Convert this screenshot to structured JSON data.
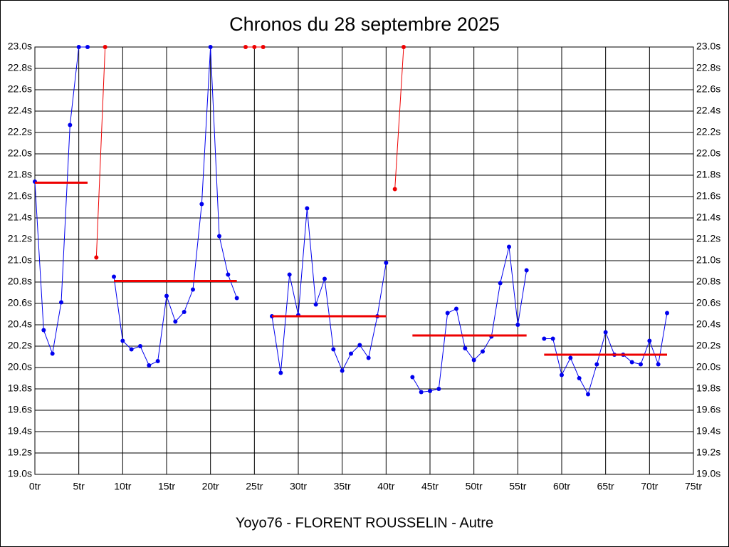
{
  "chart_data": {
    "type": "line",
    "title": "Chronos du 28 septembre 2025",
    "footer": "Yoyo76 - FLORENT ROUSSELIN - Autre",
    "x": [
      0,
      1,
      2,
      3,
      4,
      5,
      6,
      7,
      8,
      9,
      10,
      11,
      12,
      13,
      14,
      15,
      16,
      17,
      18,
      19,
      20,
      21,
      22,
      23,
      24,
      25,
      26,
      27,
      28,
      29,
      30,
      31,
      32,
      33,
      34,
      35,
      36,
      37,
      38,
      39,
      40,
      41,
      42,
      43,
      44,
      45,
      46,
      47,
      48,
      49,
      50,
      51,
      52,
      53,
      54,
      55,
      56,
      57,
      58,
      59,
      60,
      61,
      62,
      63,
      64,
      65,
      66,
      67,
      68,
      69,
      70,
      71,
      72
    ],
    "series": [
      {
        "color": "#0000ee",
        "values": [
          21.74,
          20.35,
          20.13,
          20.61,
          22.27,
          23.0,
          23.0,
          null,
          null,
          20.85,
          20.25,
          20.17,
          20.2,
          20.02,
          20.06,
          20.67,
          20.43,
          20.52,
          20.73,
          21.53,
          23.0,
          21.23,
          20.87,
          20.65,
          null,
          null,
          null,
          20.48,
          19.95,
          20.87,
          20.49,
          21.49,
          20.59,
          20.83,
          20.17,
          19.97,
          20.13,
          20.21,
          20.09,
          20.48,
          20.98,
          null,
          null,
          19.91,
          19.77,
          19.78,
          19.8,
          20.51,
          20.55,
          20.18,
          20.07,
          20.15,
          20.29,
          20.79,
          21.13,
          20.4,
          20.91,
          null,
          20.27,
          20.27,
          19.93,
          20.09,
          19.9,
          19.75,
          20.03,
          20.33,
          20.12,
          20.12,
          20.05,
          20.03,
          20.25,
          20.03,
          20.51
        ]
      },
      {
        "color": "#ee0000",
        "values": [
          null,
          null,
          null,
          null,
          null,
          null,
          null,
          21.03,
          23.0,
          null,
          null,
          null,
          null,
          null,
          null,
          null,
          null,
          null,
          null,
          null,
          null,
          null,
          null,
          null,
          23.0,
          23.0,
          23.0,
          null,
          null,
          null,
          null,
          null,
          null,
          null,
          null,
          null,
          null,
          null,
          null,
          null,
          null,
          21.67,
          23.0,
          null,
          null,
          null,
          null,
          null,
          null,
          null,
          null,
          null,
          null,
          null,
          null,
          null,
          null,
          null,
          null,
          null,
          null,
          null,
          null,
          null,
          null,
          null,
          null,
          null,
          null,
          null,
          null,
          null,
          null
        ]
      }
    ],
    "averages": {
      "color": "#ee0000",
      "segments": [
        {
          "start": 0,
          "end": 6,
          "value": 21.73
        },
        {
          "start": 9,
          "end": 23,
          "value": 20.81
        },
        {
          "start": 27,
          "end": 40,
          "value": 20.48
        },
        {
          "start": 43,
          "end": 56,
          "value": 20.3
        },
        {
          "start": 58,
          "end": 72,
          "value": 20.12
        }
      ]
    },
    "xlim": [
      0,
      75
    ],
    "xticks": [
      {
        "value": 0,
        "label": "0tr"
      },
      {
        "value": 5,
        "label": "5tr"
      },
      {
        "value": 10,
        "label": "10tr"
      },
      {
        "value": 15,
        "label": "15tr"
      },
      {
        "value": 20,
        "label": "20tr"
      },
      {
        "value": 25,
        "label": "25tr"
      },
      {
        "value": 30,
        "label": "30tr"
      },
      {
        "value": 35,
        "label": "35tr"
      },
      {
        "value": 40,
        "label": "40tr"
      },
      {
        "value": 45,
        "label": "45tr"
      },
      {
        "value": 50,
        "label": "50tr"
      },
      {
        "value": 55,
        "label": "55tr"
      },
      {
        "value": 60,
        "label": "60tr"
      },
      {
        "value": 65,
        "label": "65tr"
      },
      {
        "value": 70,
        "label": "70tr"
      },
      {
        "value": 75,
        "label": "75tr"
      }
    ],
    "ylim": [
      19.0,
      23.0
    ],
    "yticks": [
      {
        "value": 19.0,
        "label": "19.0s"
      },
      {
        "value": 19.2,
        "label": "19.2s"
      },
      {
        "value": 19.4,
        "label": "19.4s"
      },
      {
        "value": 19.6,
        "label": "19.6s"
      },
      {
        "value": 19.8,
        "label": "19.8s"
      },
      {
        "value": 20.0,
        "label": "20.0s"
      },
      {
        "value": 20.2,
        "label": "20.2s"
      },
      {
        "value": 20.4,
        "label": "20.4s"
      },
      {
        "value": 20.6,
        "label": "20.6s"
      },
      {
        "value": 20.8,
        "label": "20.8s"
      },
      {
        "value": 21.0,
        "label": "21.0s"
      },
      {
        "value": 21.2,
        "label": "21.2s"
      },
      {
        "value": 21.4,
        "label": "21.4s"
      },
      {
        "value": 21.6,
        "label": "21.6s"
      },
      {
        "value": 21.8,
        "label": "21.8s"
      },
      {
        "value": 22.0,
        "label": "22.0s"
      },
      {
        "value": 22.2,
        "label": "22.2s"
      },
      {
        "value": 22.4,
        "label": "22.4s"
      },
      {
        "value": 22.6,
        "label": "22.6s"
      },
      {
        "value": 22.8,
        "label": "22.8s"
      },
      {
        "value": 23.0,
        "label": "23.0s"
      }
    ],
    "grid": true
  }
}
